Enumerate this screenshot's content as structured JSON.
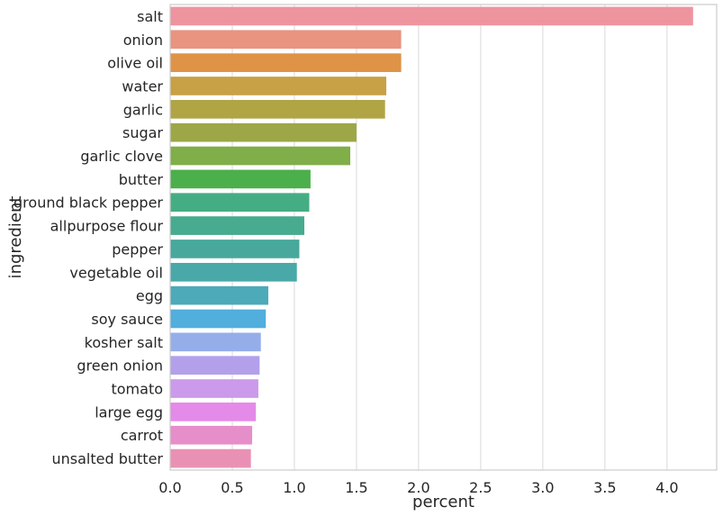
{
  "chart_data": {
    "type": "bar",
    "orientation": "horizontal",
    "title": "",
    "xlabel": "percent",
    "ylabel": "ingredient",
    "xlim": [
      0,
      4.4
    ],
    "xticks": [
      "0.0",
      "0.5",
      "1.0",
      "1.5",
      "2.0",
      "2.5",
      "3.0",
      "3.5",
      "4.0"
    ],
    "grid": "vertical gridlines",
    "categories": [
      "salt",
      "onion",
      "olive oil",
      "water",
      "garlic",
      "sugar",
      "garlic clove",
      "butter",
      "ground black pepper",
      "allpurpose flour",
      "pepper",
      "vegetable oil",
      "egg",
      "soy sauce",
      "kosher salt",
      "green onion",
      "tomato",
      "large egg",
      "carrot",
      "unsalted butter"
    ],
    "values": [
      4.21,
      1.86,
      1.86,
      1.74,
      1.73,
      1.5,
      1.45,
      1.13,
      1.12,
      1.08,
      1.04,
      1.02,
      0.79,
      0.77,
      0.73,
      0.72,
      0.71,
      0.69,
      0.66,
      0.65
    ],
    "colors": [
      "#ee949f",
      "#e89480",
      "#df9347",
      "#c8a045",
      "#b1a445",
      "#9da748",
      "#80ae48",
      "#4baf4b",
      "#45ad84",
      "#46ab8f",
      "#47a89b",
      "#49a8a8",
      "#4caab9",
      "#51aedd",
      "#95aeea",
      "#b3a0eb",
      "#cb9aea",
      "#e48ae8",
      "#e68ec9",
      "#e991b4"
    ]
  }
}
